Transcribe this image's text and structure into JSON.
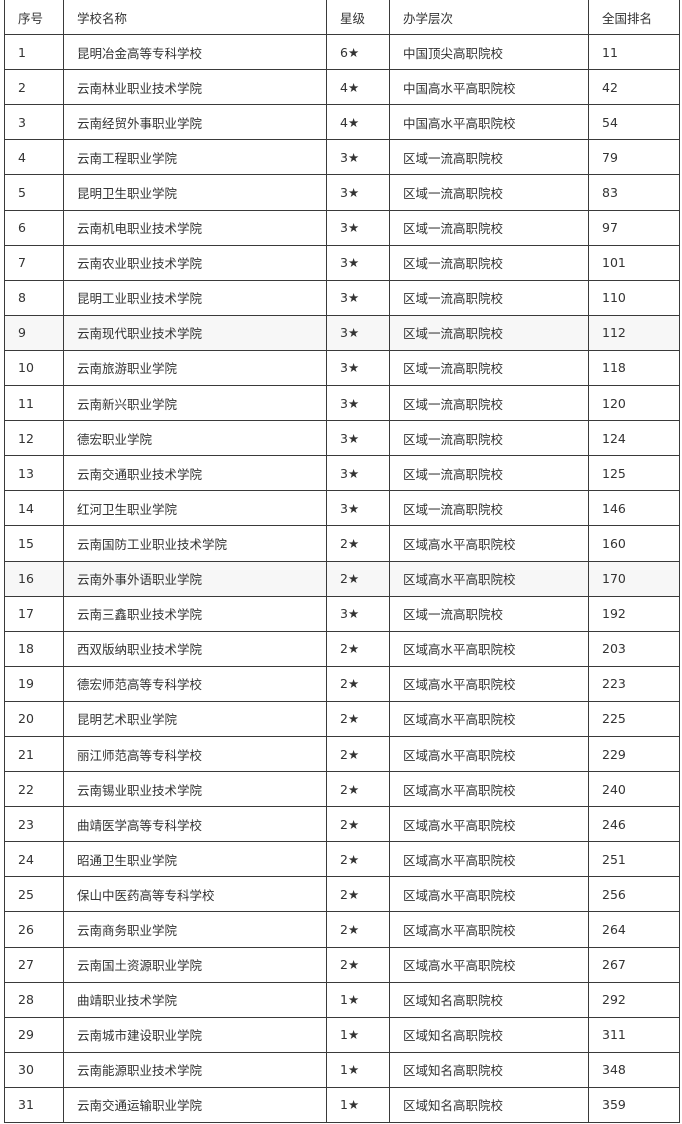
{
  "headers": [
    "序号",
    "学校名称",
    "星级",
    "办学层次",
    "全国排名"
  ],
  "rows": [
    [
      "1",
      "昆明冶金高等专科学校",
      "6★",
      "中国顶尖高职院校",
      "11"
    ],
    [
      "2",
      "云南林业职业技术学院",
      "4★",
      "中国高水平高职院校",
      "42"
    ],
    [
      "3",
      "云南经贸外事职业学院",
      "4★",
      "中国高水平高职院校",
      "54"
    ],
    [
      "4",
      "云南工程职业学院",
      "3★",
      "区域一流高职院校",
      "79"
    ],
    [
      "5",
      "昆明卫生职业学院",
      "3★",
      "区域一流高职院校",
      "83"
    ],
    [
      "6",
      "云南机电职业技术学院",
      "3★",
      "区域一流高职院校",
      "97"
    ],
    [
      "7",
      "云南农业职业技术学院",
      "3★",
      "区域一流高职院校",
      "101"
    ],
    [
      "8",
      "昆明工业职业技术学院",
      "3★",
      "区域一流高职院校",
      "110"
    ],
    [
      "9",
      "云南现代职业技术学院",
      "3★",
      "区域一流高职院校",
      "112"
    ],
    [
      "10",
      "云南旅游职业学院",
      "3★",
      "区域一流高职院校",
      "118"
    ],
    [
      "11",
      "云南新兴职业学院",
      "3★",
      "区域一流高职院校",
      "120"
    ],
    [
      "12",
      "德宏职业学院",
      "3★",
      "区域一流高职院校",
      "124"
    ],
    [
      "13",
      "云南交通职业技术学院",
      "3★",
      "区域一流高职院校",
      "125"
    ],
    [
      "14",
      "红河卫生职业学院",
      "3★",
      "区域一流高职院校",
      "146"
    ],
    [
      "15",
      "云南国防工业职业技术学院",
      "2★",
      "区域高水平高职院校",
      "160"
    ],
    [
      "16",
      "云南外事外语职业学院",
      "2★",
      "区域高水平高职院校",
      "170"
    ],
    [
      "17",
      "云南三鑫职业技术学院",
      "3★",
      "区域一流高职院校",
      "192"
    ],
    [
      "18",
      "西双版纳职业技术学院",
      "2★",
      "区域高水平高职院校",
      "203"
    ],
    [
      "19",
      "德宏师范高等专科学校",
      "2★",
      "区域高水平高职院校",
      "223"
    ],
    [
      "20",
      "昆明艺术职业学院",
      "2★",
      "区域高水平高职院校",
      "225"
    ],
    [
      "21",
      "丽江师范高等专科学校",
      "2★",
      "区域高水平高职院校",
      "229"
    ],
    [
      "22",
      "云南锡业职业技术学院",
      "2★",
      "区域高水平高职院校",
      "240"
    ],
    [
      "23",
      "曲靖医学高等专科学校",
      "2★",
      "区域高水平高职院校",
      "246"
    ],
    [
      "24",
      "昭通卫生职业学院",
      "2★",
      "区域高水平高职院校",
      "251"
    ],
    [
      "25",
      "保山中医药高等专科学校",
      "2★",
      "区域高水平高职院校",
      "256"
    ],
    [
      "26",
      "云南商务职业学院",
      "2★",
      "区域高水平高职院校",
      "264"
    ],
    [
      "27",
      "云南国土资源职业学院",
      "2★",
      "区域高水平高职院校",
      "267"
    ],
    [
      "28",
      "曲靖职业技术学院",
      "1★",
      "区域知名高职院校",
      "292"
    ],
    [
      "29",
      "云南城市建设职业学院",
      "1★",
      "区域知名高职院校",
      "311"
    ],
    [
      "30",
      "云南能源职业技术学院",
      "1★",
      "区域知名高职院校",
      "348"
    ],
    [
      "31",
      "云南交通运输职业学院",
      "1★",
      "区域知名高职院校",
      "359"
    ]
  ],
  "highlighted_rows": [
    9,
    16
  ]
}
